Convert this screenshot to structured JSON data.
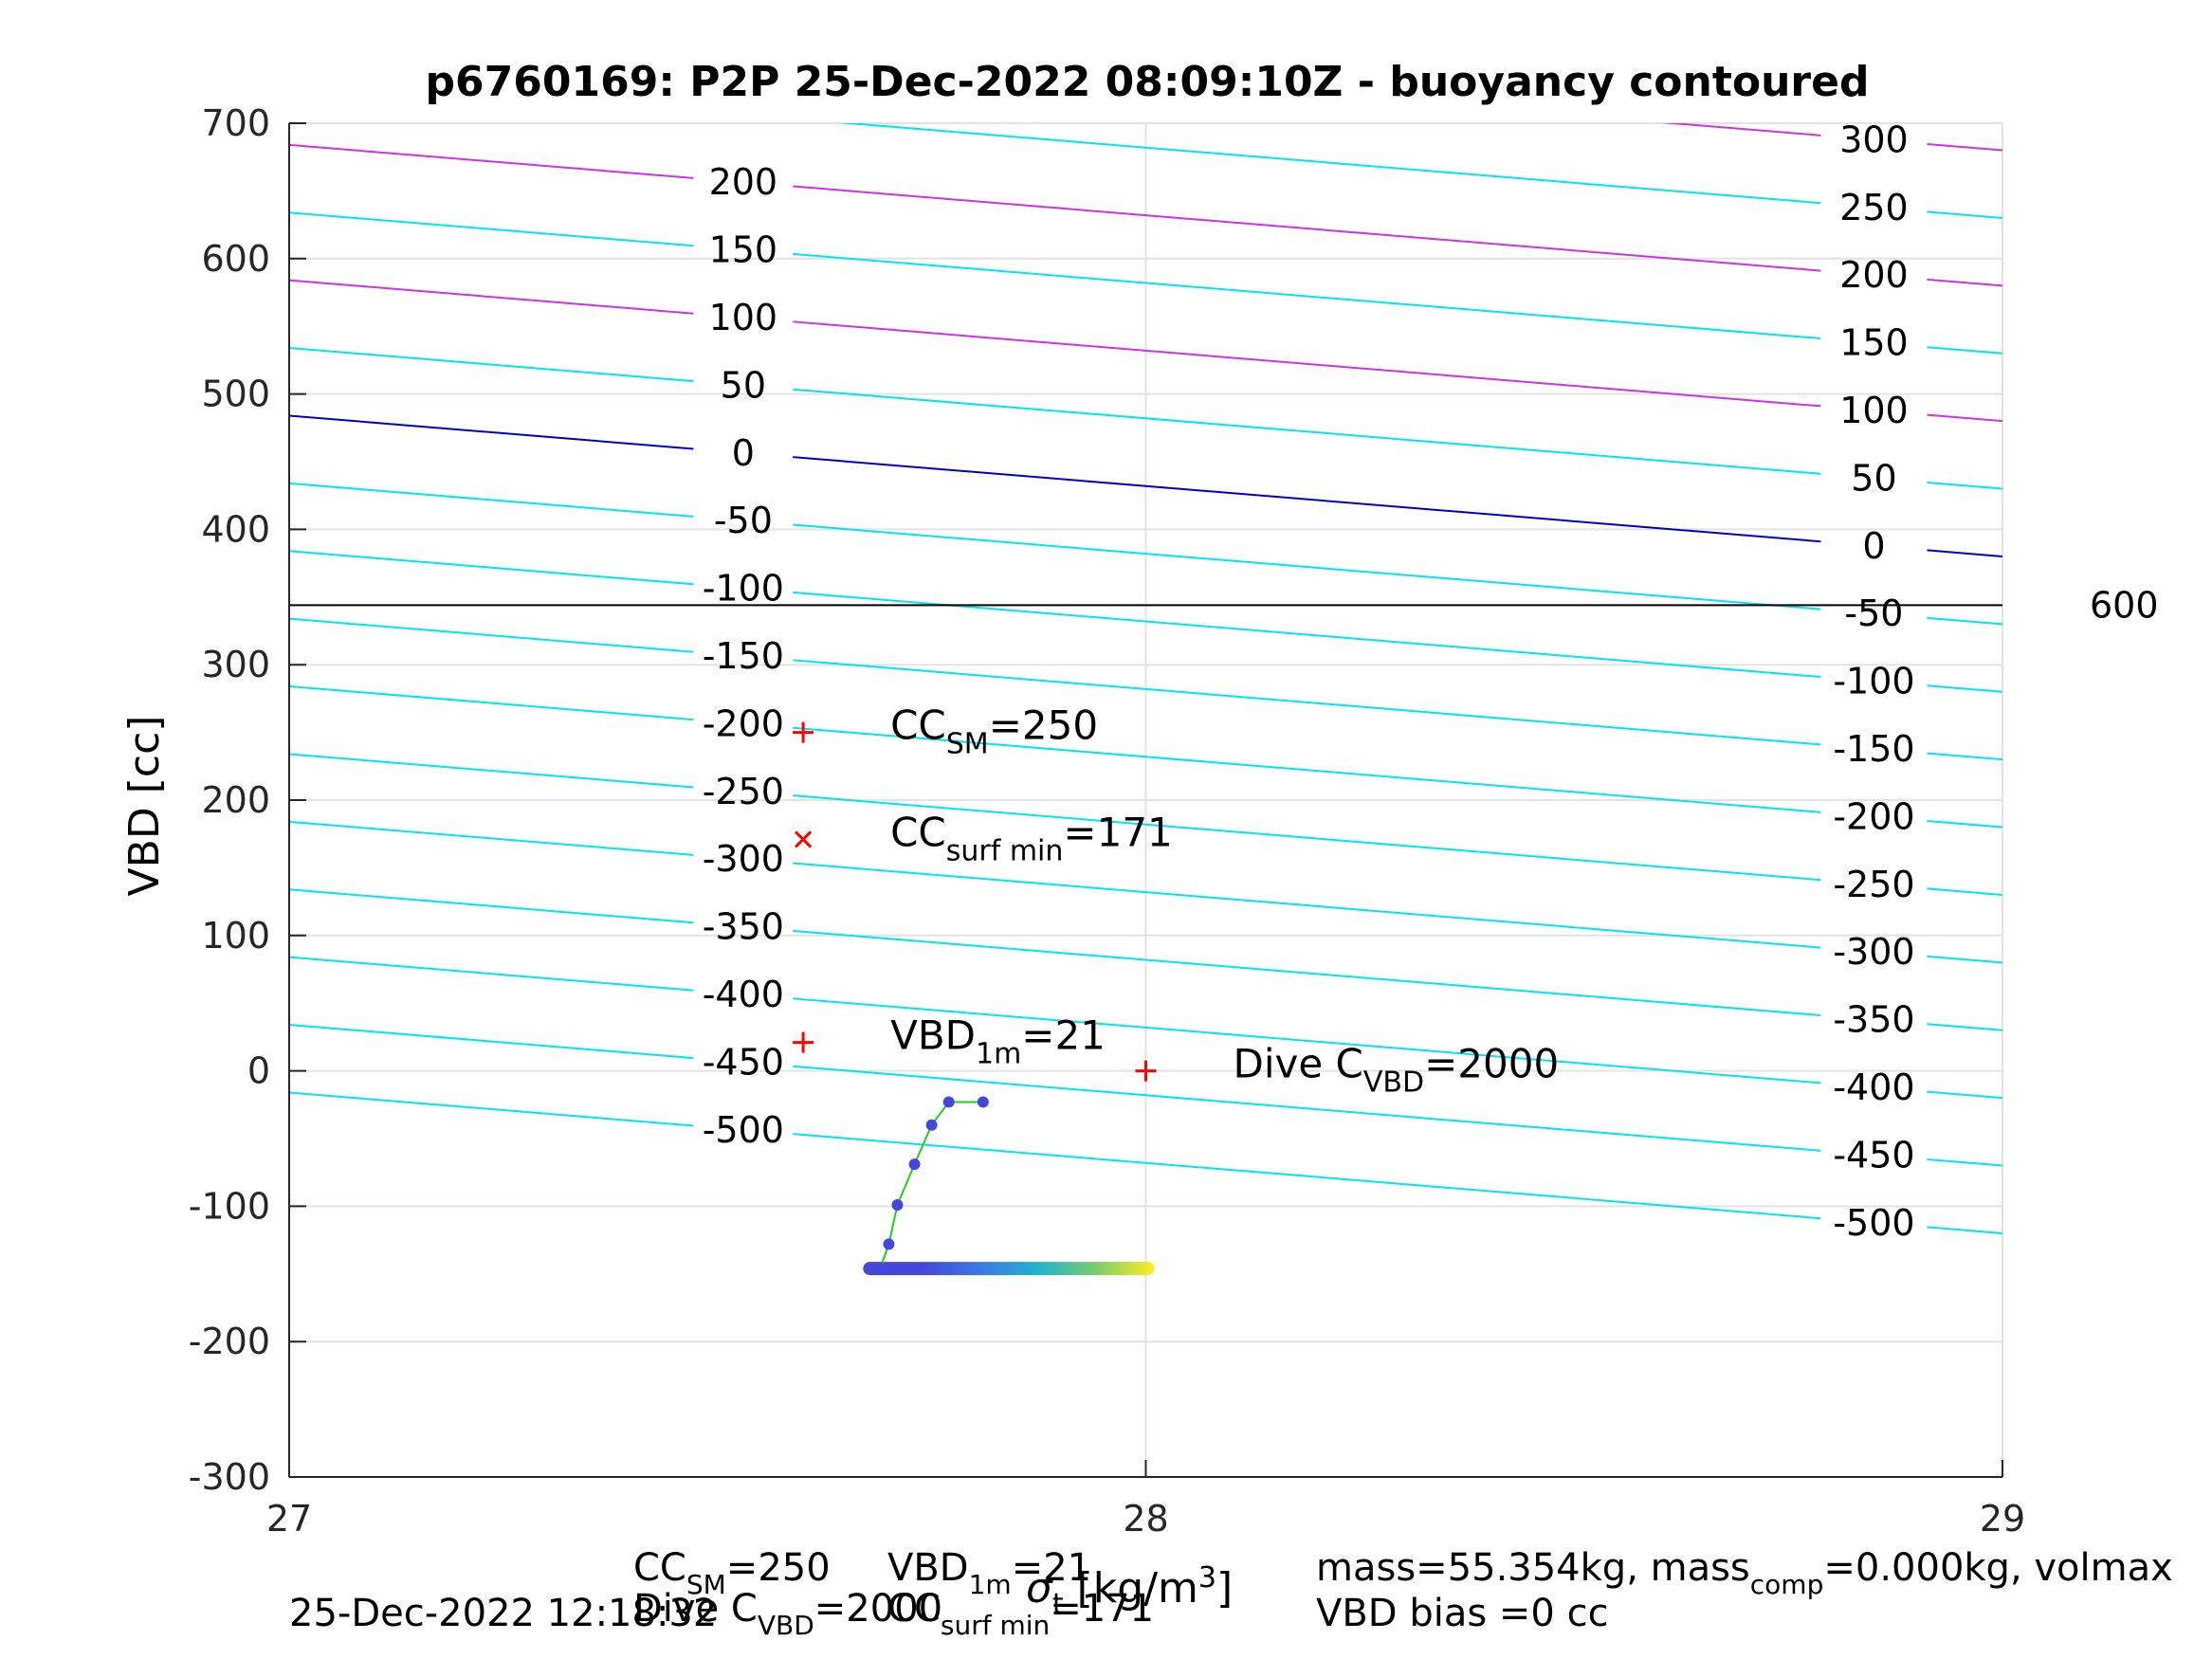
{
  "chart_data": {
    "type": "scatter",
    "title": "p6760169: P2P 25-Dec-2022 08:09:10Z - buoyancy contoured",
    "xlabel": "σ_t [kg/m³]",
    "ylabel": "VBD [cc]",
    "xlim": [
      27,
      29
    ],
    "ylim": [
      -300,
      700
    ],
    "xticks": [
      "27",
      "28",
      "29"
    ],
    "yticks": [
      "-300",
      "-200",
      "-100",
      "0",
      "100",
      "200",
      "300",
      "400",
      "500",
      "600",
      "700"
    ],
    "grid": true,
    "reference_line": {
      "y": 344,
      "label": "600"
    },
    "contours": {
      "levels": [
        -500,
        -450,
        -400,
        -350,
        -300,
        -250,
        -200,
        -150,
        -100,
        -50,
        0,
        50,
        100,
        150,
        200,
        250,
        300
      ],
      "y_at_x27": [
        -16,
        34,
        84,
        134,
        184,
        234,
        284,
        334,
        384,
        434,
        484,
        534,
        584,
        634,
        684,
        734,
        784
      ],
      "y_at_x29": [
        -120,
        -70,
        -20,
        30,
        80,
        130,
        180,
        230,
        280,
        330,
        380,
        430,
        480,
        530,
        580,
        630,
        680
      ],
      "left_label_x": 27.53,
      "right_label_x": 28.85,
      "colors": {
        "zero": "#0000cc",
        "positive_100s": "#cc33e6",
        "default": "#00e5ee"
      }
    },
    "markers": [
      {
        "x": 27.6,
        "y": 250,
        "symbol": "+",
        "color": "#ff0000",
        "label_main": "CC",
        "label_sub": "SM",
        "label_value": "=250"
      },
      {
        "x": 27.6,
        "y": 171,
        "symbol": "x",
        "color": "#ff0000",
        "label_main": "CC",
        "label_sub": "surf min",
        "label_value": "=171"
      },
      {
        "x": 27.6,
        "y": 21,
        "symbol": "+",
        "color": "#ff0000",
        "label_main": "VBD",
        "label_sub": "1m",
        "label_value": "=21"
      },
      {
        "x": 28.0,
        "y": 0,
        "symbol": "+",
        "color": "#ff0000",
        "label_main": "Dive C",
        "label_sub": "VBD",
        "label_value": "=2000"
      }
    ],
    "track": {
      "line_color": "#22cc22",
      "points": [
        {
          "x": 27.81,
          "y": -23
        },
        {
          "x": 27.77,
          "y": -23
        },
        {
          "x": 27.75,
          "y": -40
        },
        {
          "x": 27.73,
          "y": -69
        },
        {
          "x": 27.71,
          "y": -99
        },
        {
          "x": 27.7,
          "y": -128
        },
        {
          "x": 27.69,
          "y": -146
        }
      ],
      "bottom_band": {
        "y": -146,
        "x_start": 27.67,
        "x_end": 28.01,
        "gradient": [
          "#4646d9",
          "#4646d9",
          "#3c78e0",
          "#1fb4d0",
          "#7ccc6a",
          "#ffee22"
        ]
      }
    }
  },
  "footer": {
    "timestamp": "25-Dec-2022 12:18:32",
    "cc_sm_label": "CC",
    "cc_sm_sub": "SM",
    "cc_sm_value": "=250",
    "vbd1m_label": "VBD",
    "vbd1m_sub": "1m",
    "vbd1m_value": "=21",
    "dive_label": "Dive C",
    "dive_sub": "VBD",
    "dive_value": "=2000",
    "ccsurf_label": "CC",
    "ccsurf_sub": "surf min",
    "ccsurf_value": "=171",
    "mass_text": "mass=55.354kg, mass",
    "mass_sub": "comp",
    "mass_rest": "=0.000kg, volmax",
    "bias_text": "VBD bias =0 cc"
  }
}
